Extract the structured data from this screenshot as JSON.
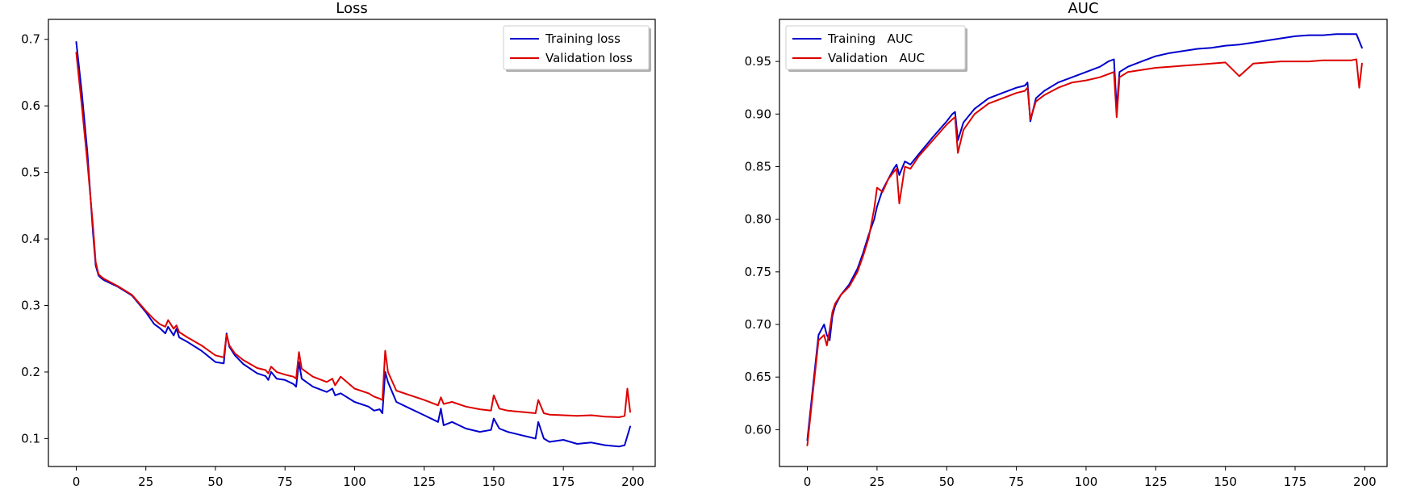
{
  "chart_data": [
    {
      "type": "line",
      "title": "Loss",
      "xlabel": "",
      "ylabel": "",
      "xlim": [
        -10,
        208
      ],
      "ylim": [
        0.058,
        0.73
      ],
      "xticks": [
        0,
        25,
        50,
        75,
        100,
        125,
        150,
        175,
        200
      ],
      "yticks": [
        0.1,
        0.2,
        0.3,
        0.4,
        0.5,
        0.6,
        0.7
      ],
      "ytick_labels": [
        "0.1",
        "0.2",
        "0.3",
        "0.4",
        "0.5",
        "0.6",
        "0.7"
      ],
      "grid": false,
      "legend": {
        "placement": "upper right",
        "entries": [
          "Training loss",
          "Validation loss"
        ]
      },
      "series": [
        {
          "name": "Training loss",
          "color": "#0000cc",
          "x": [
            0,
            2,
            4,
            6,
            7,
            8,
            9,
            10,
            15,
            20,
            25,
            28,
            30,
            32,
            33,
            35,
            36,
            37,
            40,
            45,
            50,
            53,
            54,
            55,
            57,
            60,
            65,
            68,
            69,
            70,
            72,
            75,
            77,
            78,
            79,
            80,
            81,
            85,
            90,
            92,
            93,
            95,
            100,
            105,
            107,
            109,
            110,
            111,
            112,
            115,
            120,
            125,
            130,
            131,
            132,
            135,
            140,
            145,
            149,
            150,
            152,
            155,
            160,
            165,
            166,
            168,
            170,
            175,
            180,
            185,
            190,
            195,
            197,
            199
          ],
          "y": [
            0.696,
            0.62,
            0.53,
            0.41,
            0.36,
            0.345,
            0.341,
            0.338,
            0.328,
            0.315,
            0.29,
            0.272,
            0.266,
            0.258,
            0.268,
            0.255,
            0.265,
            0.252,
            0.245,
            0.232,
            0.215,
            0.213,
            0.258,
            0.238,
            0.225,
            0.212,
            0.198,
            0.194,
            0.188,
            0.2,
            0.19,
            0.188,
            0.184,
            0.182,
            0.178,
            0.215,
            0.19,
            0.178,
            0.17,
            0.175,
            0.165,
            0.168,
            0.155,
            0.148,
            0.142,
            0.144,
            0.138,
            0.2,
            0.185,
            0.155,
            0.145,
            0.135,
            0.125,
            0.145,
            0.12,
            0.125,
            0.115,
            0.11,
            0.113,
            0.13,
            0.115,
            0.11,
            0.105,
            0.1,
            0.125,
            0.1,
            0.095,
            0.098,
            0.092,
            0.094,
            0.09,
            0.088,
            0.09,
            0.118
          ]
        },
        {
          "name": "Validation loss",
          "color": "#dd0000",
          "x": [
            0,
            2,
            4,
            6,
            7,
            8,
            9,
            10,
            15,
            20,
            25,
            28,
            30,
            32,
            33,
            35,
            36,
            37,
            40,
            45,
            50,
            53,
            54,
            55,
            57,
            60,
            65,
            68,
            69,
            70,
            72,
            75,
            77,
            78,
            79,
            80,
            81,
            85,
            90,
            92,
            93,
            95,
            100,
            105,
            107,
            109,
            110,
            111,
            112,
            115,
            120,
            125,
            130,
            131,
            132,
            135,
            140,
            145,
            149,
            150,
            152,
            155,
            160,
            165,
            166,
            168,
            170,
            175,
            180,
            185,
            190,
            195,
            197,
            198,
            199
          ],
          "y": [
            0.68,
            0.6,
            0.515,
            0.42,
            0.365,
            0.347,
            0.343,
            0.34,
            0.329,
            0.316,
            0.292,
            0.279,
            0.272,
            0.268,
            0.278,
            0.265,
            0.27,
            0.26,
            0.252,
            0.24,
            0.225,
            0.222,
            0.256,
            0.24,
            0.228,
            0.218,
            0.206,
            0.203,
            0.198,
            0.208,
            0.2,
            0.196,
            0.194,
            0.193,
            0.19,
            0.23,
            0.205,
            0.193,
            0.185,
            0.19,
            0.18,
            0.193,
            0.175,
            0.168,
            0.163,
            0.16,
            0.158,
            0.232,
            0.2,
            0.172,
            0.165,
            0.158,
            0.15,
            0.162,
            0.152,
            0.155,
            0.148,
            0.144,
            0.142,
            0.165,
            0.145,
            0.142,
            0.14,
            0.138,
            0.158,
            0.138,
            0.136,
            0.135,
            0.134,
            0.135,
            0.133,
            0.132,
            0.134,
            0.175,
            0.14
          ]
        }
      ]
    },
    {
      "type": "line",
      "title": "AUC",
      "xlabel": "",
      "ylabel": "",
      "xlim": [
        -10,
        208
      ],
      "ylim": [
        0.565,
        0.99
      ],
      "xticks": [
        0,
        25,
        50,
        75,
        100,
        125,
        150,
        175,
        200
      ],
      "yticks": [
        0.6,
        0.65,
        0.7,
        0.75,
        0.8,
        0.85,
        0.9,
        0.95
      ],
      "ytick_labels": [
        "0.60",
        "0.65",
        "0.70",
        "0.75",
        "0.80",
        "0.85",
        "0.90",
        "0.95"
      ],
      "grid": false,
      "legend": {
        "placement": "upper left",
        "entries": [
          "Training   AUC",
          "Validation   AUC"
        ]
      },
      "series": [
        {
          "name": "Training   AUC",
          "color": "#0000cc",
          "x": [
            0,
            2,
            4,
            6,
            7,
            8,
            9,
            10,
            12,
            15,
            18,
            20,
            22,
            24,
            25,
            27,
            29,
            31,
            32,
            33,
            35,
            37,
            40,
            45,
            50,
            52,
            53,
            54,
            56,
            60,
            65,
            70,
            75,
            78,
            79,
            80,
            82,
            85,
            90,
            95,
            100,
            105,
            108,
            110,
            111,
            112,
            115,
            120,
            125,
            130,
            135,
            140,
            145,
            150,
            155,
            160,
            165,
            170,
            175,
            180,
            185,
            190,
            195,
            197,
            199
          ],
          "y": [
            0.59,
            0.64,
            0.69,
            0.7,
            0.69,
            0.685,
            0.708,
            0.718,
            0.728,
            0.738,
            0.753,
            0.768,
            0.785,
            0.8,
            0.812,
            0.828,
            0.838,
            0.848,
            0.852,
            0.842,
            0.855,
            0.852,
            0.862,
            0.878,
            0.893,
            0.9,
            0.902,
            0.875,
            0.892,
            0.905,
            0.915,
            0.92,
            0.925,
            0.927,
            0.93,
            0.893,
            0.915,
            0.922,
            0.93,
            0.935,
            0.94,
            0.945,
            0.95,
            0.952,
            0.905,
            0.94,
            0.945,
            0.95,
            0.955,
            0.958,
            0.96,
            0.962,
            0.963,
            0.965,
            0.966,
            0.968,
            0.97,
            0.972,
            0.974,
            0.975,
            0.975,
            0.976,
            0.976,
            0.976,
            0.963
          ]
        },
        {
          "name": "Validation   AUC",
          "color": "#dd0000",
          "x": [
            0,
            2,
            4,
            6,
            7,
            8,
            9,
            10,
            12,
            15,
            18,
            20,
            22,
            24,
            25,
            27,
            29,
            31,
            32,
            33,
            35,
            37,
            40,
            45,
            50,
            52,
            53,
            54,
            56,
            60,
            65,
            70,
            75,
            78,
            79,
            80,
            82,
            85,
            90,
            95,
            100,
            105,
            108,
            110,
            111,
            112,
            115,
            120,
            125,
            130,
            135,
            140,
            145,
            150,
            155,
            160,
            165,
            170,
            175,
            180,
            185,
            190,
            195,
            197,
            198,
            199
          ],
          "y": [
            0.585,
            0.635,
            0.685,
            0.69,
            0.68,
            0.695,
            0.712,
            0.72,
            0.728,
            0.736,
            0.75,
            0.765,
            0.782,
            0.81,
            0.83,
            0.826,
            0.838,
            0.845,
            0.848,
            0.815,
            0.85,
            0.848,
            0.86,
            0.875,
            0.89,
            0.895,
            0.897,
            0.863,
            0.885,
            0.9,
            0.91,
            0.915,
            0.92,
            0.922,
            0.925,
            0.895,
            0.912,
            0.918,
            0.925,
            0.93,
            0.932,
            0.935,
            0.938,
            0.94,
            0.897,
            0.935,
            0.94,
            0.942,
            0.944,
            0.945,
            0.946,
            0.947,
            0.948,
            0.949,
            0.936,
            0.948,
            0.949,
            0.95,
            0.95,
            0.95,
            0.951,
            0.951,
            0.951,
            0.952,
            0.925,
            0.948
          ]
        }
      ]
    }
  ]
}
